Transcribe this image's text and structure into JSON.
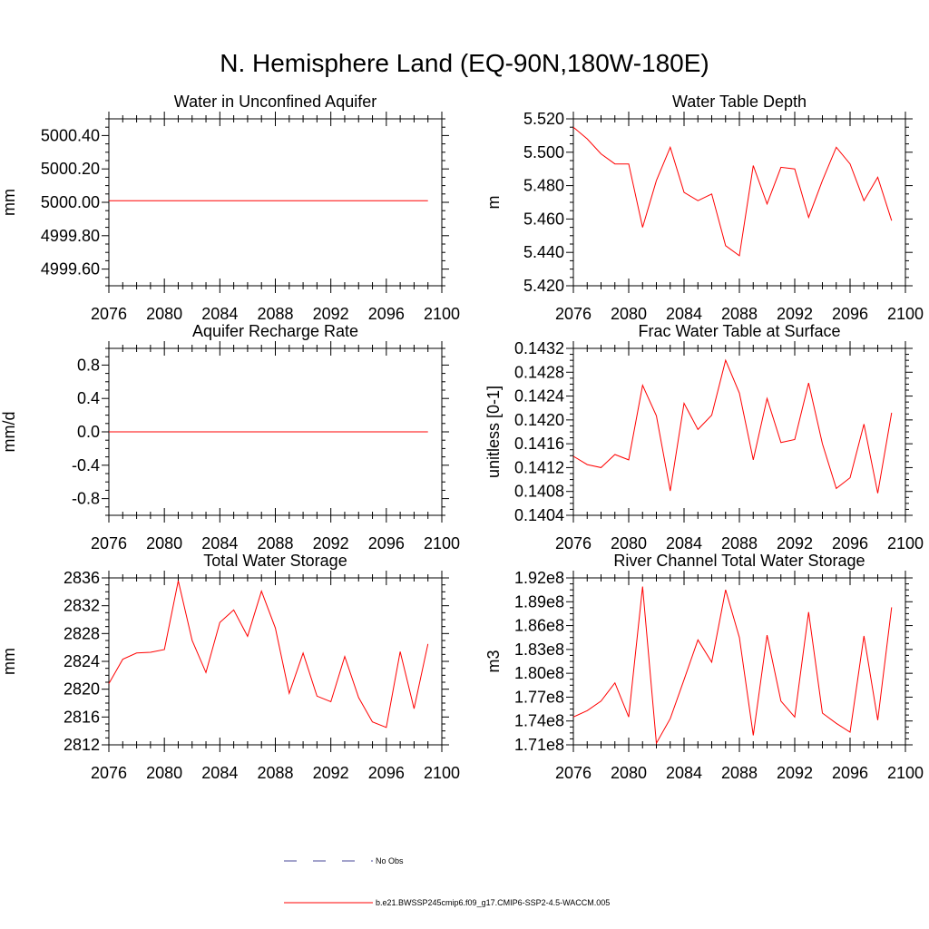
{
  "page": {
    "title": "N. Hemisphere Land (EQ-90N,180W-180E)",
    "legend": {
      "obs_label": "No Obs",
      "model_label": "b.e21.BWSSP245cmip6.f09_g17.CMIP6-SSP2-4.5-WACCM.005"
    },
    "colors": {
      "model": "#ff0000",
      "obs": "#4a4a9a",
      "axis": "#000000"
    }
  },
  "chart_data": [
    {
      "type": "line",
      "title": "Water in Unconfined Aquifer",
      "ylabel": "mm",
      "xlim": [
        2076,
        2100
      ],
      "ylim": [
        4999.5,
        5000.5
      ],
      "xticks": [
        2076,
        2080,
        2084,
        2088,
        2092,
        2096,
        2100
      ],
      "xtick_labels": [
        "2076",
        "2080",
        "2084",
        "2088",
        "2092",
        "2096",
        "2100"
      ],
      "yticks": [
        4999.6,
        4999.8,
        5000.0,
        5000.2,
        5000.4
      ],
      "ytick_labels": [
        "4999.60",
        "4999.80",
        "5000.00",
        "5000.20",
        "5000.40"
      ],
      "x": [
        2076,
        2077,
        2078,
        2079,
        2080,
        2081,
        2082,
        2083,
        2084,
        2085,
        2086,
        2087,
        2088,
        2089,
        2090,
        2091,
        2092,
        2093,
        2094,
        2095,
        2096,
        2097,
        2098,
        2099
      ],
      "series": [
        {
          "values": [
            5000.01,
            5000.01,
            5000.01,
            5000.01,
            5000.01,
            5000.01,
            5000.01,
            5000.01,
            5000.01,
            5000.01,
            5000.01,
            5000.01,
            5000.01,
            5000.01,
            5000.01,
            5000.01,
            5000.01,
            5000.01,
            5000.01,
            5000.01,
            5000.01,
            5000.01,
            5000.01,
            5000.01
          ]
        }
      ]
    },
    {
      "type": "line",
      "title": "Water Table Depth",
      "ylabel": "m",
      "xlim": [
        2076,
        2100
      ],
      "ylim": [
        5.42,
        5.52
      ],
      "xticks": [
        2076,
        2080,
        2084,
        2088,
        2092,
        2096,
        2100
      ],
      "xtick_labels": [
        "2076",
        "2080",
        "2084",
        "2088",
        "2092",
        "2096",
        "2100"
      ],
      "yticks": [
        5.42,
        5.44,
        5.46,
        5.48,
        5.5,
        5.52
      ],
      "ytick_labels": [
        "5.420",
        "5.440",
        "5.460",
        "5.480",
        "5.500",
        "5.520"
      ],
      "x": [
        2076,
        2077,
        2078,
        2079,
        2080,
        2081,
        2082,
        2083,
        2084,
        2085,
        2086,
        2087,
        2088,
        2089,
        2090,
        2091,
        2092,
        2093,
        2094,
        2095,
        2096,
        2097,
        2098,
        2099
      ],
      "series": [
        {
          "values": [
            5.515,
            5.508,
            5.499,
            5.493,
            5.493,
            5.455,
            5.483,
            5.503,
            5.476,
            5.471,
            5.475,
            5.444,
            5.438,
            5.492,
            5.469,
            5.491,
            5.49,
            5.461,
            5.483,
            5.503,
            5.493,
            5.471,
            5.485,
            5.459
          ]
        }
      ]
    },
    {
      "type": "line",
      "title": "Aquifer Recharge Rate",
      "ylabel": "mm/d",
      "xlim": [
        2076,
        2100
      ],
      "ylim": [
        -1.0,
        1.0
      ],
      "xticks": [
        2076,
        2080,
        2084,
        2088,
        2092,
        2096,
        2100
      ],
      "xtick_labels": [
        "2076",
        "2080",
        "2084",
        "2088",
        "2092",
        "2096",
        "2100"
      ],
      "yticks": [
        -0.8,
        -0.4,
        0.0,
        0.4,
        0.8
      ],
      "ytick_labels": [
        "-0.8",
        "-0.4",
        "0.0",
        "0.4",
        "0.8"
      ],
      "x": [
        2076,
        2077,
        2078,
        2079,
        2080,
        2081,
        2082,
        2083,
        2084,
        2085,
        2086,
        2087,
        2088,
        2089,
        2090,
        2091,
        2092,
        2093,
        2094,
        2095,
        2096,
        2097,
        2098,
        2099
      ],
      "series": [
        {
          "values": [
            0,
            0,
            0,
            0,
            0,
            0,
            0,
            0,
            0,
            0,
            0,
            0,
            0,
            0,
            0,
            0,
            0,
            0,
            0,
            0,
            0,
            0,
            0,
            0
          ]
        }
      ]
    },
    {
      "type": "line",
      "title": "Frac Water Table at Surface",
      "ylabel": "unitless [0-1]",
      "xlim": [
        2076,
        2100
      ],
      "ylim": [
        0.1404,
        0.1432
      ],
      "xticks": [
        2076,
        2080,
        2084,
        2088,
        2092,
        2096,
        2100
      ],
      "xtick_labels": [
        "2076",
        "2080",
        "2084",
        "2088",
        "2092",
        "2096",
        "2100"
      ],
      "yticks": [
        0.1404,
        0.1408,
        0.1412,
        0.1416,
        0.142,
        0.1424,
        0.1428,
        0.1432
      ],
      "ytick_labels": [
        "0.1404",
        "0.1408",
        "0.1412",
        "0.1416",
        "0.1420",
        "0.1424",
        "0.1428",
        "0.1432"
      ],
      "x": [
        2076,
        2077,
        2078,
        2079,
        2080,
        2081,
        2082,
        2083,
        2084,
        2085,
        2086,
        2087,
        2088,
        2089,
        2090,
        2091,
        2092,
        2093,
        2094,
        2095,
        2096,
        2097,
        2098,
        2099
      ],
      "series": [
        {
          "values": [
            0.14139,
            0.14125,
            0.1412,
            0.14142,
            0.14133,
            0.14258,
            0.14207,
            0.14081,
            0.14228,
            0.14184,
            0.14208,
            0.143,
            0.14245,
            0.14133,
            0.14236,
            0.14162,
            0.14167,
            0.14262,
            0.1416,
            0.14085,
            0.14103,
            0.14193,
            0.14077,
            0.14212
          ]
        }
      ]
    },
    {
      "type": "line",
      "title": "Total Water Storage",
      "ylabel": "mm",
      "xlim": [
        2076,
        2100
      ],
      "ylim": [
        2812,
        2836
      ],
      "xticks": [
        2076,
        2080,
        2084,
        2088,
        2092,
        2096,
        2100
      ],
      "xtick_labels": [
        "2076",
        "2080",
        "2084",
        "2088",
        "2092",
        "2096",
        "2100"
      ],
      "yticks": [
        2812,
        2816,
        2820,
        2824,
        2828,
        2832,
        2836
      ],
      "ytick_labels": [
        "2812",
        "2816",
        "2820",
        "2824",
        "2828",
        "2832",
        "2836"
      ],
      "x": [
        2076,
        2077,
        2078,
        2079,
        2080,
        2081,
        2082,
        2083,
        2084,
        2085,
        2086,
        2087,
        2088,
        2089,
        2090,
        2091,
        2092,
        2093,
        2094,
        2095,
        2096,
        2097,
        2098,
        2099
      ],
      "series": [
        {
          "values": [
            2820.8,
            2824.3,
            2825.2,
            2825.3,
            2825.7,
            2835.6,
            2827.0,
            2822.4,
            2829.6,
            2831.4,
            2827.6,
            2834.1,
            2828.8,
            2819.4,
            2825.2,
            2819.0,
            2818.2,
            2824.7,
            2818.8,
            2815.3,
            2814.5,
            2825.4,
            2817.2,
            2826.5
          ]
        }
      ]
    },
    {
      "type": "line",
      "title": "River Channel Total Water Storage",
      "ylabel": "m3",
      "xlim": [
        2076,
        2100
      ],
      "ylim": [
        171000000.0,
        192000000.0
      ],
      "xticks": [
        2076,
        2080,
        2084,
        2088,
        2092,
        2096,
        2100
      ],
      "xtick_labels": [
        "2076",
        "2080",
        "2084",
        "2088",
        "2092",
        "2096",
        "2100"
      ],
      "yticks": [
        171000000.0,
        174000000.0,
        177000000.0,
        180000000.0,
        183000000.0,
        186000000.0,
        189000000.0,
        192000000.0
      ],
      "ytick_labels": [
        "1.71e8",
        "1.74e8",
        "1.77e8",
        "1.80e8",
        "1.83e8",
        "1.86e8",
        "1.89e8",
        "1.92e8"
      ],
      "x": [
        2076,
        2077,
        2078,
        2079,
        2080,
        2081,
        2082,
        2083,
        2084,
        2085,
        2086,
        2087,
        2088,
        2089,
        2090,
        2091,
        2092,
        2093,
        2094,
        2095,
        2096,
        2097,
        2098,
        2099
      ],
      "series": [
        {
          "values": [
            174500000.0,
            175300000.0,
            176500000.0,
            178800000.0,
            174500000.0,
            190900000.0,
            171200000.0,
            174300000.0,
            179200000.0,
            184200000.0,
            181400000.0,
            190500000.0,
            184500000.0,
            172200000.0,
            184800000.0,
            176500000.0,
            174500000.0,
            187700000.0,
            175000000.0,
            173700000.0,
            172600000.0,
            184700000.0,
            174100000.0,
            188300000.0
          ]
        }
      ]
    }
  ]
}
